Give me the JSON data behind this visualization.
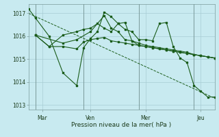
{
  "background_color": "#c8eaf0",
  "grid_color": "#a8ccd4",
  "line_color": "#1a5c1a",
  "xlabel": "Pression niveau de la mer( hPa )",
  "ylim": [
    1012.8,
    1017.4
  ],
  "yticks": [
    1013,
    1014,
    1015,
    1016,
    1017
  ],
  "xmin": 0,
  "xmax": 13.5,
  "day_positions": [
    1.0,
    4.5,
    8.5,
    12.5
  ],
  "day_labels": [
    "Mar",
    "Ven",
    "Mer",
    "Jeu"
  ],
  "vline_positions": [
    0.5,
    4.0,
    8.0,
    12.0
  ],
  "series0": {
    "x": [
      0.0,
      0.5,
      1.5,
      2.5,
      3.5,
      4.0,
      4.5,
      5.0,
      5.5,
      6.0,
      6.5,
      7.0,
      7.5,
      8.0,
      8.5,
      9.0,
      9.5,
      10.0,
      10.5,
      11.0,
      11.5,
      12.0,
      12.5,
      13.0,
      13.5
    ],
    "y": [
      1017.2,
      1016.8,
      1016.0,
      1014.4,
      1013.85,
      1015.5,
      1015.9,
      1016.2,
      1017.05,
      1016.85,
      1016.55,
      1016.3,
      1016.2,
      1015.85,
      1015.85,
      1015.8,
      1016.55,
      1016.6,
      1015.55,
      1015.05,
      1014.85,
      1013.85,
      1013.6,
      1013.35,
      1013.35
    ]
  },
  "series1": {
    "x": [
      0.5,
      1.5,
      2.5,
      3.5,
      4.0,
      4.5,
      5.0,
      5.5,
      6.0,
      6.5,
      7.0,
      7.5,
      8.0,
      8.5,
      9.0,
      9.5,
      10.0,
      10.5,
      11.0,
      11.5,
      12.0,
      12.5,
      13.0,
      13.5
    ],
    "y": [
      1016.05,
      1015.55,
      1015.55,
      1015.45,
      1015.75,
      1015.85,
      1015.9,
      1015.95,
      1015.8,
      1015.75,
      1015.7,
      1015.65,
      1015.6,
      1015.55,
      1015.5,
      1015.45,
      1015.4,
      1015.35,
      1015.3,
      1015.25,
      1015.2,
      1015.15,
      1015.1,
      1015.05
    ]
  },
  "series2": {
    "x": [
      0.5,
      2.5,
      3.5,
      4.5,
      5.5,
      6.0,
      6.5,
      7.0,
      7.5,
      8.0,
      8.5,
      9.0,
      9.5,
      10.0,
      10.5,
      11.0,
      11.5,
      12.0,
      12.5,
      13.0,
      13.5
    ],
    "y": [
      1016.05,
      1015.7,
      1015.85,
      1016.2,
      1016.9,
      1016.35,
      1016.2,
      1015.85,
      1015.8,
      1015.7,
      1015.6,
      1015.55,
      1015.5,
      1015.45,
      1015.4,
      1015.35,
      1015.3,
      1015.2,
      1015.15,
      1015.1,
      1015.05
    ]
  },
  "series3": {
    "x": [
      0.5,
      1.5,
      2.5,
      3.5,
      4.0,
      4.5,
      5.0,
      5.5,
      6.0,
      6.5,
      7.0,
      7.5,
      8.0,
      8.5,
      9.0,
      9.5,
      10.0,
      10.5,
      11.0,
      11.5,
      12.0,
      12.5,
      13.0,
      13.5
    ],
    "y": [
      1016.05,
      1015.55,
      1016.05,
      1016.2,
      1016.3,
      1016.35,
      1016.55,
      1016.35,
      1016.2,
      1016.55,
      1016.6,
      1015.8,
      1015.6,
      1015.55,
      1015.5,
      1015.45,
      1015.4,
      1015.35,
      1015.3,
      1015.25,
      1015.2,
      1015.15,
      1015.1,
      1015.05
    ]
  },
  "trend_x": [
    0.0,
    13.5
  ],
  "trend_y": [
    1017.0,
    1013.3
  ]
}
